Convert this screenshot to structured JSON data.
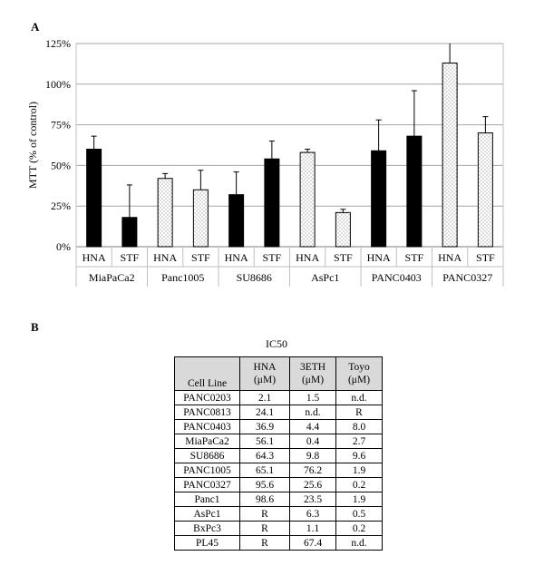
{
  "panel_a_label": "A",
  "panel_b_label": "B",
  "chart_data": {
    "type": "bar",
    "ylabel": "MTT (% of control)",
    "ylim": [
      0,
      125
    ],
    "yticks": [
      "0%",
      "25%",
      "50%",
      "75%",
      "100%",
      "125%"
    ],
    "grid": "horizontal",
    "groups": [
      "MiaPaCa2",
      "Panc1005",
      "SU8686",
      "AsPc1",
      "PANC0403",
      "PANC0327"
    ],
    "categories": [
      "HNA",
      "STF",
      "HNA",
      "STF",
      "HNA",
      "STF",
      "HNA",
      "STF",
      "HNA",
      "STF",
      "HNA",
      "STF"
    ],
    "values": [
      60,
      18,
      42,
      35,
      32,
      54,
      58,
      21,
      59,
      68,
      113,
      70
    ],
    "error": [
      8,
      20,
      3,
      12,
      14,
      11,
      2,
      2,
      19,
      28,
      13,
      10
    ],
    "fill": [
      "solid",
      "solid",
      "dotted",
      "dotted",
      "solid",
      "solid",
      "dotted",
      "dotted",
      "solid",
      "solid",
      "dotted",
      "dotted"
    ],
    "colors": {
      "solid": "#000000",
      "dotted_dots": "#555555",
      "grid": "#a6a6a6"
    }
  },
  "table": {
    "title": "IC50",
    "headers": [
      {
        "line1": "Cell Line",
        "line2": ""
      },
      {
        "line1": "HNA",
        "line2": "(μM)"
      },
      {
        "line1": "3ETH",
        "line2": "(μM)"
      },
      {
        "line1": "Toyo",
        "line2": "(μM)"
      }
    ],
    "rows": [
      [
        "PANC0203",
        "2.1",
        "1.5",
        "n.d."
      ],
      [
        "PANC0813",
        "24.1",
        "n.d.",
        "R"
      ],
      [
        "PANC0403",
        "36.9",
        "4.4",
        "8.0"
      ],
      [
        "MiaPaCa2",
        "56.1",
        "0.4",
        "2.7"
      ],
      [
        "SU8686",
        "64.3",
        "9.8",
        "9.6"
      ],
      [
        "PANC1005",
        "65.1",
        "76.2",
        "1.9"
      ],
      [
        "PANC0327",
        "95.6",
        "25.6",
        "0.2"
      ],
      [
        "Panc1",
        "98.6",
        "23.5",
        "1.9"
      ],
      [
        "AsPc1",
        "R",
        "6.3",
        "0.5"
      ],
      [
        "BxPc3",
        "R",
        "1.1",
        "0.2"
      ],
      [
        "PL45",
        "R",
        "67.4",
        "n.d."
      ]
    ],
    "header_color": "#d9d9d9"
  }
}
